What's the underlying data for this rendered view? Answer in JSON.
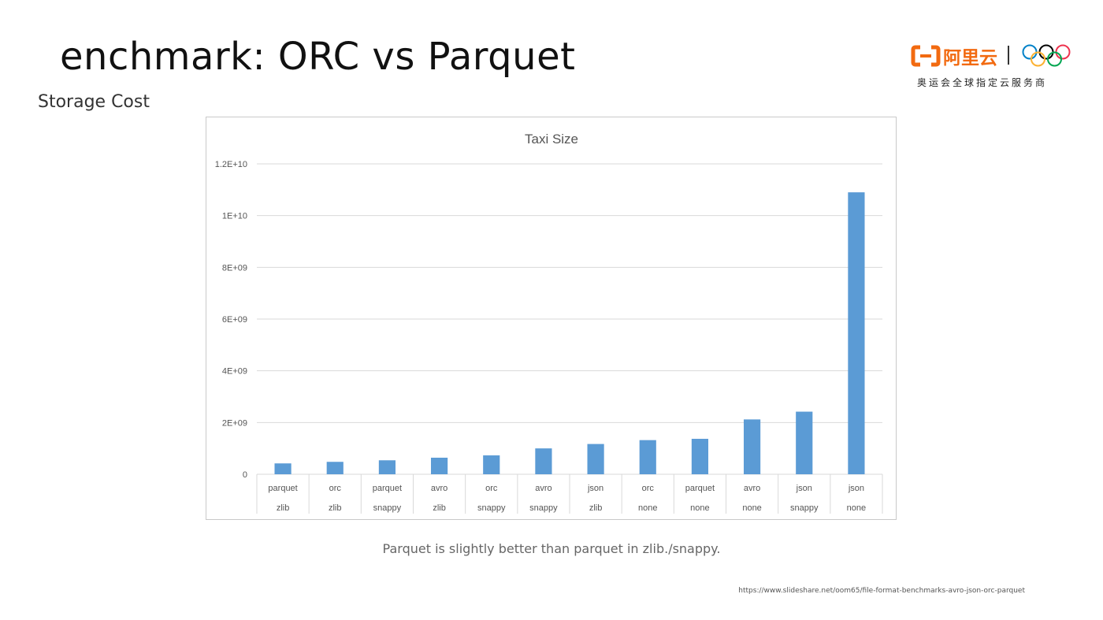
{
  "slide": {
    "title": "enchmark: ORC vs Parquet",
    "subtitle": "Storage Cost",
    "caption": "Parquet is slightly better than parquet in zlib./snappy.",
    "source": "https://www.slideshare.net/oom65/file-format-benchmarks-avro-json-orc-parquet"
  },
  "logo": {
    "brand_text": "阿里云",
    "tagline": "奥运会全球指定云服务商",
    "brand_color": "#f26a10",
    "ring_colors": [
      "#0081c8",
      "#000000",
      "#ee334e",
      "#fcb131",
      "#00a651"
    ]
  },
  "chart_data": {
    "type": "bar",
    "title": "Taxi Size",
    "xlabel": "",
    "ylabel": "",
    "ylim": [
      0,
      12000000000
    ],
    "yticks": [
      0,
      2000000000,
      4000000000,
      6000000000,
      8000000000,
      10000000000,
      12000000000
    ],
    "ytick_labels": [
      "0",
      "2E+09",
      "4E+09",
      "6E+09",
      "8E+09",
      "1E+10",
      "1.2E+10"
    ],
    "categories": [
      [
        "parquet",
        "zlib"
      ],
      [
        "orc",
        "zlib"
      ],
      [
        "parquet",
        "snappy"
      ],
      [
        "avro",
        "zlib"
      ],
      [
        "orc",
        "snappy"
      ],
      [
        "avro",
        "snappy"
      ],
      [
        "json",
        "zlib"
      ],
      [
        "orc",
        "none"
      ],
      [
        "parquet",
        "none"
      ],
      [
        "avro",
        "none"
      ],
      [
        "json",
        "snappy"
      ],
      [
        "json",
        "none"
      ]
    ],
    "values": [
      420000000,
      480000000,
      540000000,
      640000000,
      730000000,
      1000000000,
      1170000000,
      1320000000,
      1370000000,
      2120000000,
      2420000000,
      10900000000
    ],
    "bar_color": "#5b9bd5",
    "grid": true,
    "legend": "none"
  }
}
